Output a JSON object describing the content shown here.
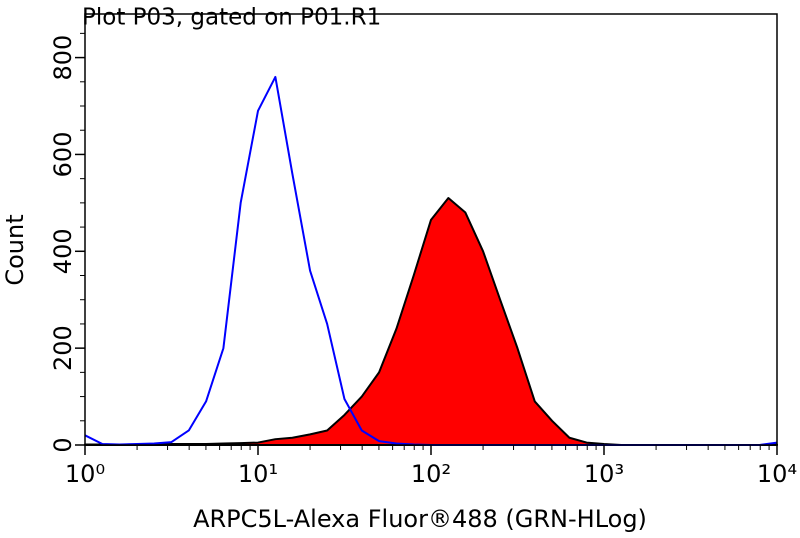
{
  "chart_data": {
    "type": "histogram-overlay",
    "title": "Plot P03, gated on P01.R1",
    "x_label": "ARPC5L-Alexa Fluor®488 (GRN-HLog)",
    "y_label": "Count",
    "x_log": true,
    "xlim": [
      1,
      10000
    ],
    "xticks": [
      {
        "value": 1,
        "label": "10⁰"
      },
      {
        "value": 10,
        "label": "10¹"
      },
      {
        "value": 100,
        "label": "10²"
      },
      {
        "value": 1000,
        "label": "10³"
      },
      {
        "value": 10000,
        "label": "10⁴"
      }
    ],
    "xminorticks": [
      2,
      3,
      4,
      5,
      6,
      7,
      8,
      9,
      20,
      30,
      40,
      50,
      60,
      70,
      80,
      90,
      200,
      300,
      400,
      500,
      600,
      700,
      800,
      900,
      2000,
      3000,
      4000,
      5000,
      6000,
      7000,
      8000,
      9000
    ],
    "ylim": [
      0,
      890
    ],
    "yticks": [
      0,
      200,
      400,
      600,
      800
    ],
    "yminorticks": [
      50,
      100,
      150,
      250,
      300,
      350,
      450,
      500,
      550,
      650,
      700,
      750,
      850
    ],
    "x": [
      1,
      1.26,
      1.58,
      2,
      2.51,
      3.16,
      3.98,
      5.01,
      6.31,
      7.94,
      10,
      12.6,
      15.8,
      20,
      25.1,
      31.6,
      39.8,
      50.1,
      63.1,
      79.4,
      100,
      126,
      158,
      200,
      251,
      316,
      398,
      501,
      631,
      794,
      1000,
      1259,
      1585,
      1995,
      2512,
      3162,
      3981,
      5012,
      6310,
      7943,
      10000
    ],
    "series": [
      {
        "color": "#000000",
        "fill": "#ff0000",
        "values": [
          1,
          1,
          1,
          1,
          1,
          2,
          2,
          2,
          3,
          4,
          5,
          12,
          15,
          22,
          30,
          62,
          100,
          150,
          240,
          350,
          465,
          510,
          480,
          400,
          300,
          200,
          90,
          50,
          15,
          5,
          2,
          0,
          0,
          0,
          0,
          0,
          0,
          0,
          0,
          0,
          1
        ]
      },
      {
        "color": "#0000ff",
        "fill": null,
        "values": [
          20,
          2,
          1,
          2,
          3,
          6,
          30,
          90,
          200,
          500,
          690,
          760,
          560,
          360,
          250,
          95,
          30,
          8,
          3,
          1,
          0,
          0,
          0,
          0,
          0,
          0,
          0,
          0,
          0,
          0,
          0,
          0,
          0,
          0,
          0,
          0,
          0,
          0,
          0,
          0,
          5
        ]
      }
    ]
  }
}
